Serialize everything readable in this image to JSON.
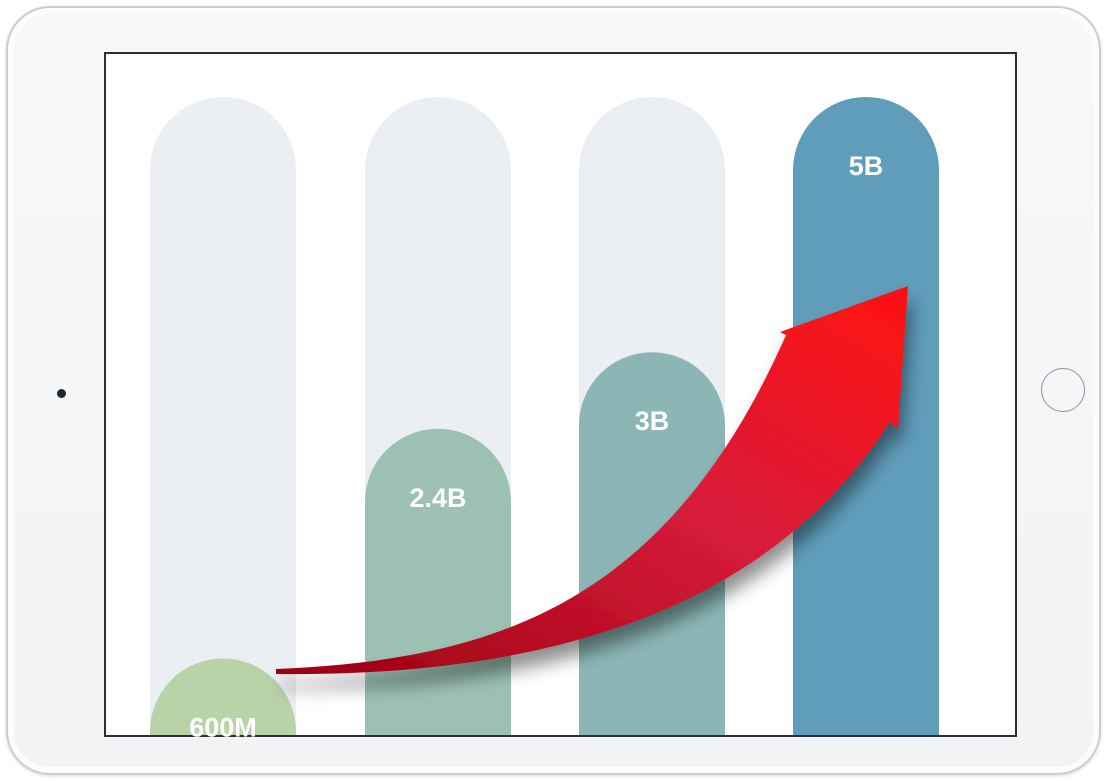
{
  "chart_data": {
    "type": "bar",
    "categories": [
      "",
      "",
      "",
      ""
    ],
    "values": [
      0.6,
      2.4,
      3,
      5
    ],
    "data_labels": [
      "600M",
      "2.4B",
      "3B",
      "5B"
    ],
    "unit": "billion",
    "ylim": [
      0,
      5
    ],
    "bar_colors": [
      "#b9d3a9",
      "#9cc1b3",
      "#8cb6b6",
      "#5f9dbb"
    ],
    "track_color": "#ebeef2",
    "trend_arrow_color": "#e0182a",
    "grid": false,
    "legend": "none"
  }
}
